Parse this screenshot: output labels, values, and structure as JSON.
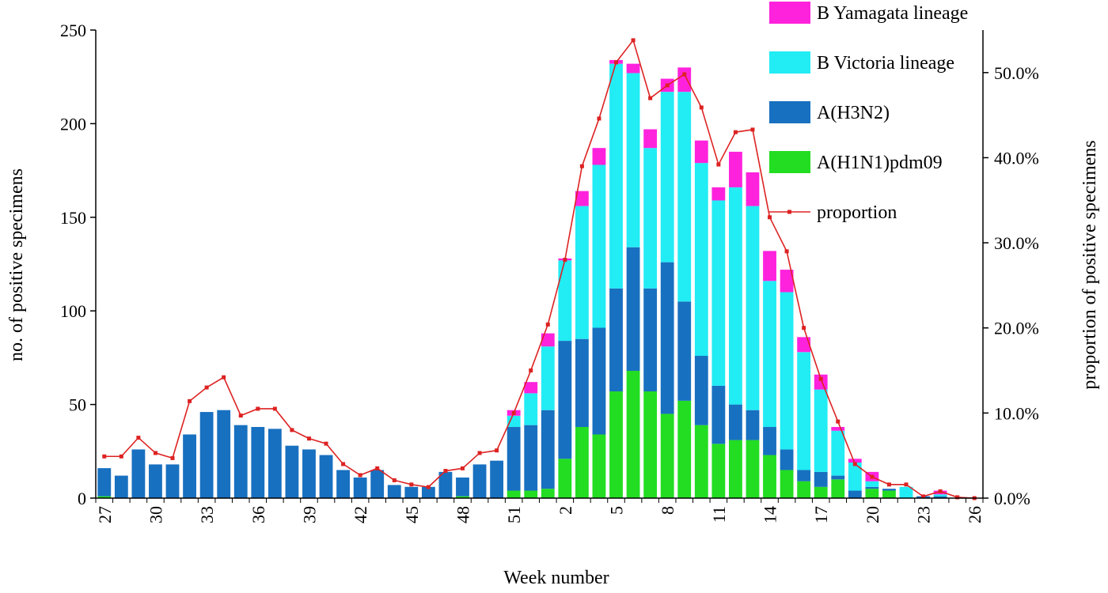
{
  "chart_data": {
    "type": "bar",
    "stacked": true,
    "xlabel": "Week number",
    "ylabel": "no. of positive specimens",
    "y2label": "proportion of positive specimens",
    "ylim": [
      0,
      250
    ],
    "y2lim": [
      0,
      0.55
    ],
    "yticks": [
      "0",
      "50",
      "100",
      "150",
      "200",
      "250"
    ],
    "y2ticks": [
      "0.0%",
      "10.0%",
      "20.0%",
      "30.0%",
      "40.0%",
      "50.0%"
    ],
    "y2tick_values": [
      0,
      0.1,
      0.2,
      0.3,
      0.4,
      0.5
    ],
    "categories": [
      "27",
      "28",
      "29",
      "30",
      "31",
      "32",
      "33",
      "34",
      "35",
      "36",
      "37",
      "38",
      "39",
      "40",
      "41",
      "42",
      "43",
      "44",
      "45",
      "46",
      "47",
      "48",
      "49",
      "50",
      "51",
      "52",
      "1",
      "2",
      "3",
      "4",
      "5",
      "6",
      "7",
      "8",
      "9",
      "10",
      "11",
      "12",
      "13",
      "14",
      "15",
      "16",
      "17",
      "18",
      "19",
      "20",
      "21",
      "22",
      "23",
      "24",
      "25",
      "26"
    ],
    "xtick_labels": [
      "27",
      "30",
      "33",
      "36",
      "39",
      "42",
      "45",
      "48",
      "51",
      "2",
      "5",
      "8",
      "11",
      "14",
      "17",
      "20",
      "23",
      "26"
    ],
    "xtick_indices": [
      0,
      3,
      6,
      9,
      12,
      15,
      18,
      21,
      24,
      27,
      30,
      33,
      36,
      39,
      42,
      45,
      48,
      51
    ],
    "series": [
      {
        "name": "A(H1N1)pdm09",
        "color": "#22dd22",
        "values": [
          1,
          0,
          0,
          0,
          0,
          0,
          0,
          0,
          0,
          0,
          0,
          0,
          0,
          0,
          0,
          0,
          0,
          0,
          0,
          0,
          0,
          1,
          0,
          0,
          4,
          4,
          5,
          21,
          38,
          34,
          57,
          68,
          57,
          45,
          52,
          39,
          29,
          31,
          31,
          23,
          15,
          9,
          6,
          10,
          0,
          5,
          4,
          0,
          0,
          0,
          0,
          0
        ]
      },
      {
        "name": "A(H3N2)",
        "color": "#1870c0",
        "values": [
          15,
          12,
          26,
          18,
          18,
          34,
          46,
          47,
          39,
          38,
          37,
          28,
          26,
          23,
          15,
          11,
          15,
          7,
          6,
          6,
          14,
          10,
          18,
          20,
          34,
          35,
          42,
          63,
          47,
          57,
          55,
          66,
          55,
          81,
          53,
          37,
          31,
          19,
          16,
          15,
          11,
          6,
          8,
          2,
          4,
          1,
          1,
          0,
          1,
          1,
          0,
          0
        ]
      },
      {
        "name": "B Victoria lineage",
        "color": "#22ecf4",
        "values": [
          0,
          0,
          0,
          0,
          0,
          0,
          0,
          0,
          0,
          0,
          0,
          0,
          0,
          0,
          0,
          0,
          0,
          0,
          0,
          0,
          0,
          0,
          0,
          0,
          6,
          17,
          34,
          43,
          71,
          87,
          120,
          93,
          75,
          91,
          112,
          103,
          99,
          116,
          109,
          78,
          84,
          63,
          44,
          24,
          15,
          3,
          0,
          6,
          0,
          1,
          0,
          0
        ]
      },
      {
        "name": "B Yamagata lineage",
        "color": "#ff22dd",
        "values": [
          0,
          0,
          0,
          0,
          0,
          0,
          0,
          0,
          0,
          0,
          0,
          0,
          0,
          0,
          0,
          0,
          0,
          0,
          0,
          0,
          0,
          0,
          0,
          0,
          3,
          6,
          7,
          1,
          8,
          9,
          2,
          5,
          10,
          7,
          13,
          12,
          7,
          19,
          18,
          16,
          12,
          8,
          8,
          2,
          2,
          5,
          0,
          0,
          0,
          2,
          0,
          0
        ]
      }
    ],
    "line": {
      "name": "proportion",
      "color": "#dd2222",
      "values": [
        0.049,
        0.049,
        0.071,
        0.053,
        0.047,
        0.114,
        0.13,
        0.142,
        0.097,
        0.105,
        0.105,
        0.08,
        0.07,
        0.064,
        0.04,
        0.027,
        0.035,
        0.021,
        0.016,
        0.013,
        0.032,
        0.035,
        0.053,
        0.056,
        0.1,
        0.15,
        0.204,
        0.28,
        0.39,
        0.446,
        0.512,
        0.538,
        0.47,
        0.485,
        0.498,
        0.459,
        0.392,
        0.43,
        0.433,
        0.33,
        0.29,
        0.2,
        0.14,
        0.09,
        0.04,
        0.025,
        0.016,
        0.016,
        0.002,
        0.008,
        0.001,
        0.0
      ]
    },
    "legend": {
      "position": "top-right",
      "items": [
        {
          "label": "B Yamagata lineage",
          "kind": "box",
          "color": "#ff22dd"
        },
        {
          "label": "B Victoria lineage",
          "kind": "box",
          "color": "#22ecf4"
        },
        {
          "label": "A(H3N2)",
          "kind": "box",
          "color": "#1870c0"
        },
        {
          "label": "A(H1N1)pdm09",
          "kind": "box",
          "color": "#22dd22"
        },
        {
          "label": "proportion",
          "kind": "line",
          "color": "#dd2222"
        }
      ]
    },
    "grid": false
  }
}
